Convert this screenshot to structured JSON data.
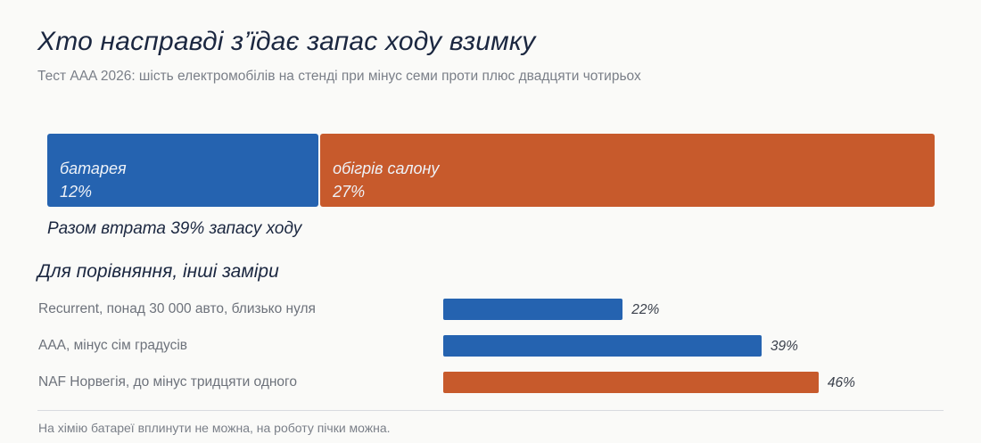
{
  "title": "Хто насправді з’їдає запас ходу взимку",
  "subtitle": "Тест AAA 2026: шість електромобілів на стенді при мінус семи проти плюс двадцяти чотирьох",
  "colors": {
    "battery": "#2563b0",
    "heater": "#c75a2c"
  },
  "chart_data": [
    {
      "type": "bar",
      "orientation": "horizontal-stacked",
      "series": [
        {
          "name": "батарея",
          "value": 12,
          "value_label": "12%"
        },
        {
          "name": "обігрів салону",
          "value": 27,
          "value_label": "27%"
        }
      ],
      "total_label": "Разом втрата 39% запасу ходу"
    },
    {
      "type": "bar",
      "orientation": "horizontal",
      "title": "Для порівняння, інші заміри",
      "categories": [
        "Recurrent, понад 30 000 авто, близько нуля",
        "AAA, мінус сім градусів",
        "NAF Норвегія, до мінус тридцяти одного"
      ],
      "values": [
        22,
        39,
        46
      ],
      "value_labels": [
        "22%",
        "39%",
        "46%"
      ],
      "bar_colors": [
        "#2563b0",
        "#2563b0",
        "#c75a2c"
      ]
    }
  ],
  "footnote": "На хімію батареї вплинути не можна, на роботу пічки можна."
}
